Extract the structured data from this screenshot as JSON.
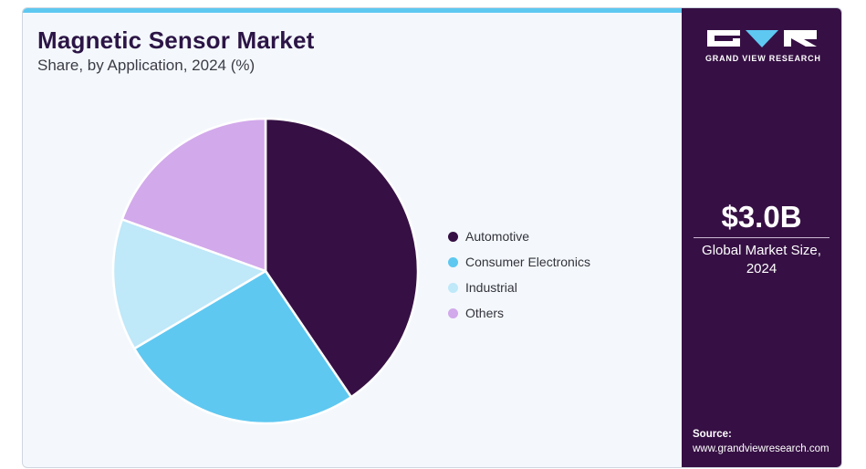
{
  "header": {
    "title": "Magnetic Sensor Market",
    "subtitle": "Share, by Application, 2024 (%)"
  },
  "colors": {
    "accent_bar": "#5ec8f1",
    "panel": "#361044",
    "background": "#f4f8fc"
  },
  "chart_data": {
    "type": "pie",
    "title": "Magnetic Sensor Market",
    "subtitle": "Share, by Application, 2024 (%)",
    "legend_position": "right",
    "slices": [
      {
        "label": "Automotive",
        "value": 40.5,
        "color": "#361044"
      },
      {
        "label": "Consumer Electronics",
        "value": 26.0,
        "color": "#5ec8f1"
      },
      {
        "label": "Industrial",
        "value": 14.0,
        "color": "#bfe8f9"
      },
      {
        "label": "Others",
        "value": 19.5,
        "color": "#d2a9eb"
      }
    ]
  },
  "sidebar": {
    "logo_text": "GRAND VIEW RESEARCH",
    "market_value": "$3.0B",
    "market_caption_line1": "Global Market Size,",
    "market_caption_line2": "2024",
    "source_label": "Source:",
    "source_url": "www.grandviewresearch.com"
  }
}
